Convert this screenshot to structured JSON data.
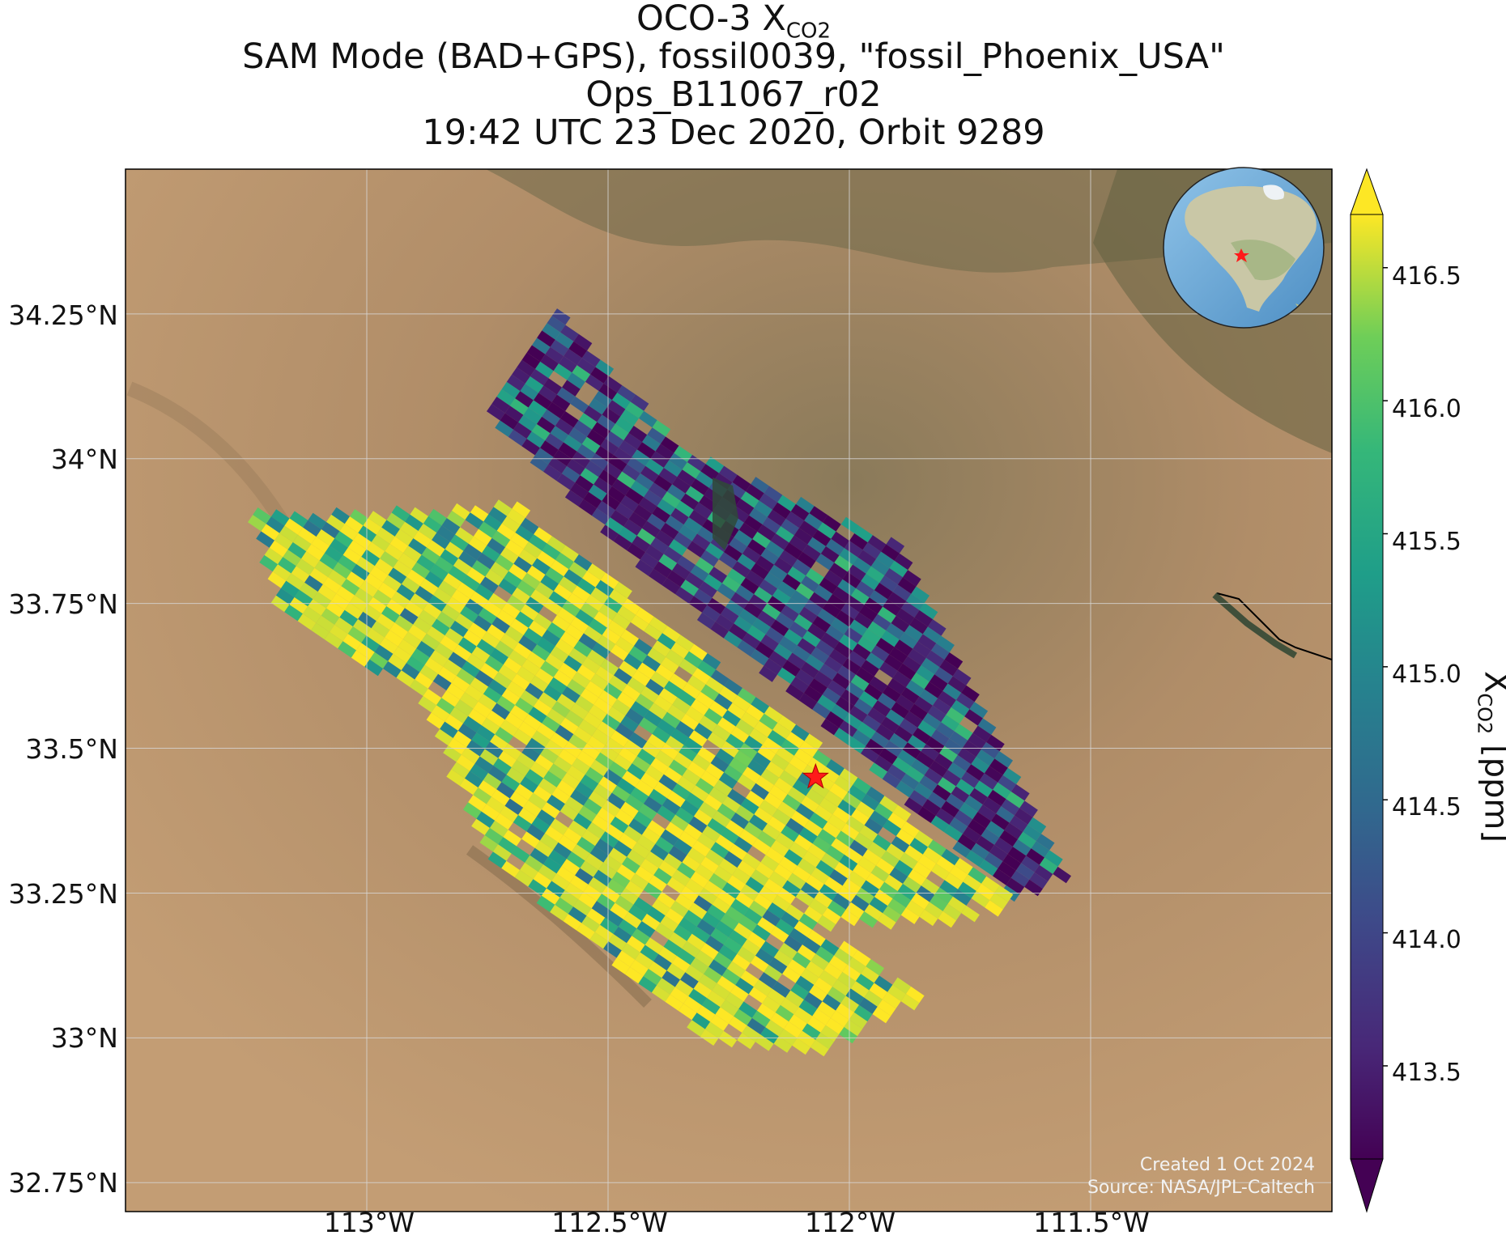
{
  "title": {
    "line1_prefix": "OCO-3 X",
    "line1_sub": "CO2",
    "line2": "SAM Mode (BAD+GPS), fossil0039, \"fossil_Phoenix_USA\"",
    "line3": "Ops_B11067_r02",
    "line4": "19:42 UTC 23 Dec 2020, Orbit 9289"
  },
  "map": {
    "lat_ticks": [
      "34.25°N",
      "34°N",
      "33.75°N",
      "33.5°N",
      "33.25°N",
      "33°N",
      "32.75°N"
    ],
    "lon_ticks": [
      "113°W",
      "112.5°W",
      "112°W",
      "111.5°W"
    ],
    "lat_values": [
      34.25,
      34.0,
      33.75,
      33.5,
      33.25,
      33.0,
      32.75
    ],
    "lon_values": [
      -113.0,
      -112.5,
      -112.0,
      -111.5
    ],
    "extent": {
      "lon_min": -113.5,
      "lon_max": -111.0,
      "lat_min": 32.7,
      "lat_max": 34.5
    },
    "target_marker": {
      "lat": 33.45,
      "lon": -112.07,
      "color": "#ff1a1a",
      "icon": "red-star-icon"
    },
    "inset": {
      "type": "globe",
      "marker_icon": "red-star-icon"
    }
  },
  "colorbar": {
    "label_prefix": "X",
    "label_sub": "CO2",
    "label_suffix": " [ppm]",
    "ticks": [
      "416.5",
      "416.0",
      "415.5",
      "415.0",
      "414.5",
      "414.0",
      "413.5"
    ],
    "tick_values": [
      416.5,
      416.0,
      415.5,
      415.0,
      414.5,
      414.0,
      413.5
    ],
    "range": [
      413.15,
      416.7
    ],
    "colormap": "viridis"
  },
  "credits": {
    "created": "Created 1 Oct 2024",
    "source": "Source: NASA/JPL-Caltech"
  },
  "chart_data": {
    "type": "heatmap",
    "title": "OCO-3 XCO2",
    "xlabel": "",
    "ylabel": "",
    "colorbar_label": "XCO2 [ppm]",
    "xlim": [
      -113.5,
      -111.0
    ],
    "ylim": [
      32.7,
      34.5
    ],
    "vlim": [
      413.15,
      416.7
    ],
    "swaths": [
      {
        "name": "northeast swath",
        "lat_range": [
          33.25,
          34.27
        ],
        "lon_range": [
          -112.75,
          -111.55
        ],
        "typical_xco2": 414.4
      },
      {
        "name": "southwest swath",
        "lat_range": [
          32.98,
          33.9
        ],
        "lon_range": [
          -113.25,
          -111.8
        ],
        "typical_xco2": 415.9
      }
    ],
    "target": {
      "lat": 33.45,
      "lon": -112.07
    }
  }
}
